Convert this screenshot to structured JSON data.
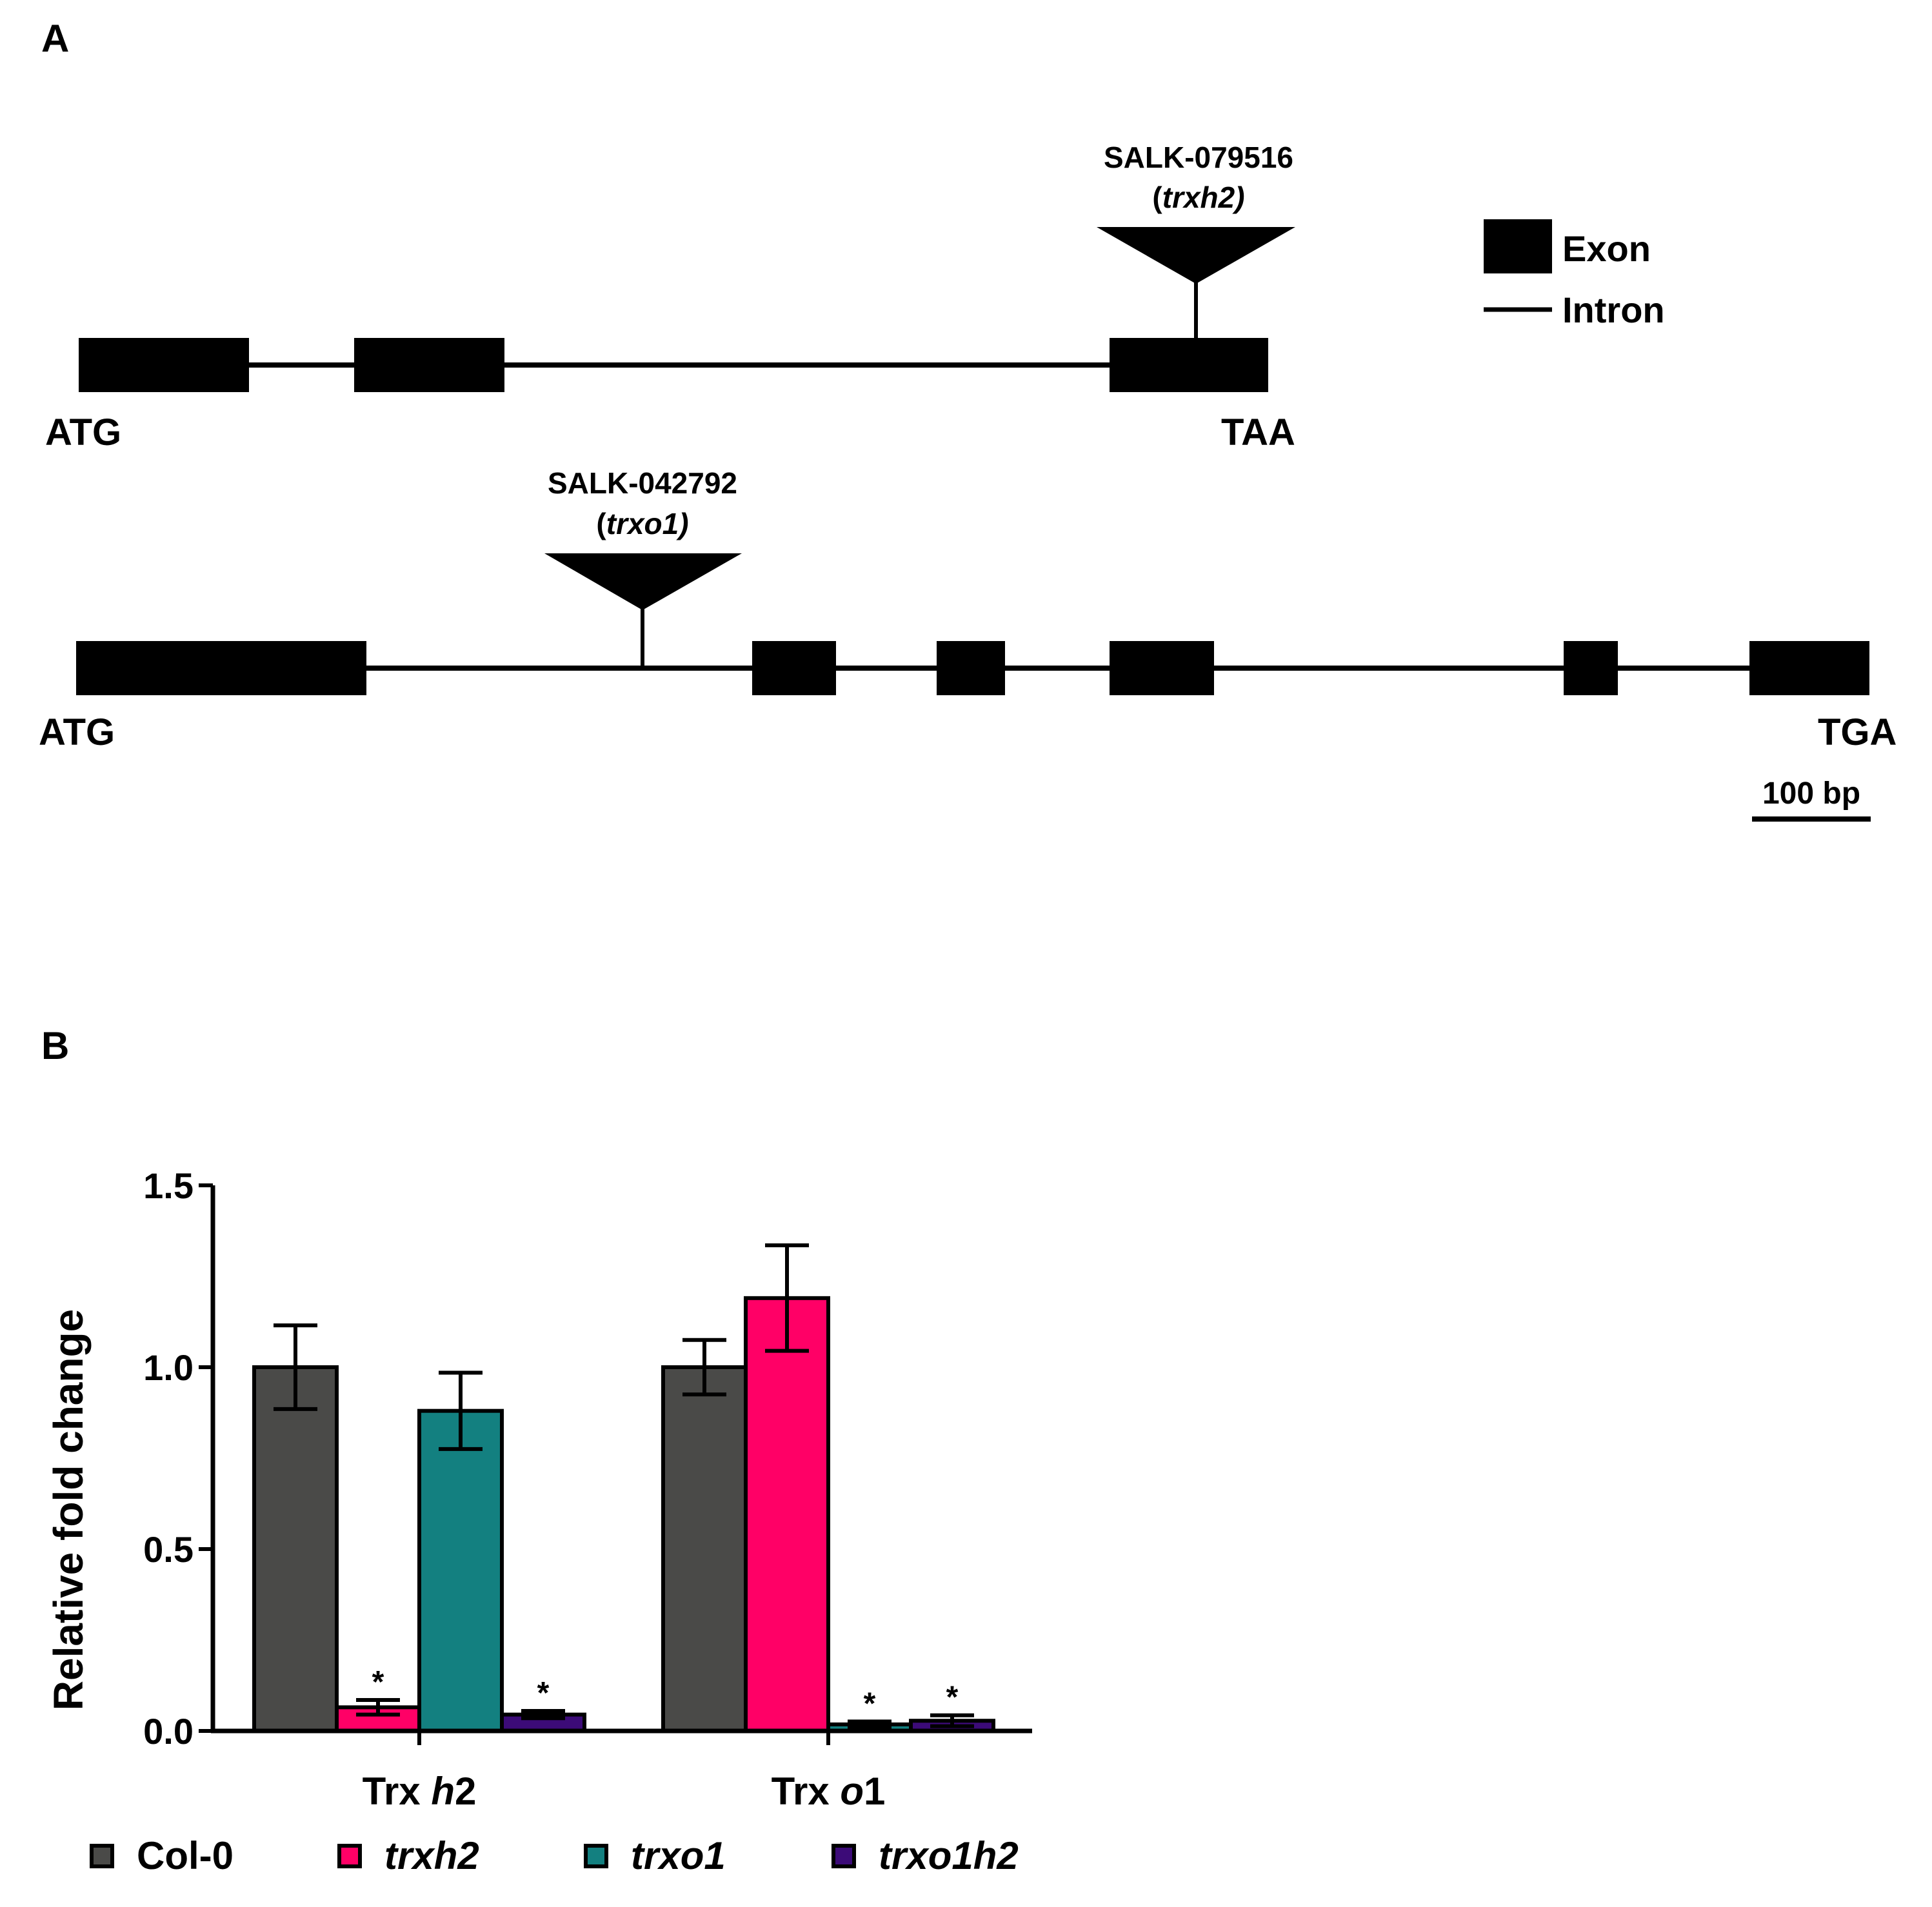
{
  "panel_a": {
    "label": "A",
    "legend": {
      "exon": "Exon",
      "intron": "Intron"
    },
    "genes": [
      {
        "start": "ATG",
        "stop": "TAA",
        "insertion": {
          "line1": "SALK-079516",
          "line2_open": "(",
          "line2_italic": "trxh2)"
        }
      },
      {
        "start": "ATG",
        "stop": "TGA",
        "insertion": {
          "line1": "SALK-042792",
          "line2_open": "(",
          "line2_italic": "trxo1)"
        }
      }
    ],
    "scale_bar": "100 bp"
  },
  "panel_b": {
    "label": "B"
  },
  "chart_data": {
    "type": "bar",
    "title": "",
    "xlabel": "",
    "ylabel": "Relative fold change",
    "ylim": [
      0,
      1.5
    ],
    "yticks": [
      "0.0",
      "0.5",
      "1.0",
      "1.5"
    ],
    "categories": [
      {
        "prefix": "Trx ",
        "italic": "h",
        "suffix": "2"
      },
      {
        "prefix": "Trx ",
        "italic": "o",
        "suffix": "1"
      }
    ],
    "series": [
      {
        "name": "Col-0",
        "italic": false,
        "color": "#4a4a48",
        "values": [
          1.0,
          1.0
        ],
        "errors": [
          0.115,
          0.075
        ],
        "significant": [
          false,
          false
        ]
      },
      {
        "name": "trxh2",
        "italic": true,
        "color": "#ff0066",
        "values": [
          0.065,
          1.19
        ],
        "errors": [
          0.02,
          0.145
        ],
        "significant": [
          true,
          false
        ]
      },
      {
        "name": "trxo1",
        "italic": true,
        "color": "#138080",
        "values": [
          0.88,
          0.018
        ],
        "errors": [
          0.105,
          0.008
        ],
        "significant": [
          false,
          true
        ]
      },
      {
        "name": "trxo1h2",
        "italic": true,
        "color": "#3c0b78",
        "values": [
          0.045,
          0.028
        ],
        "errors": [
          0.01,
          0.015
        ],
        "significant": [
          true,
          true
        ]
      }
    ],
    "significance_marker": "*",
    "legend_position": "bottom"
  }
}
